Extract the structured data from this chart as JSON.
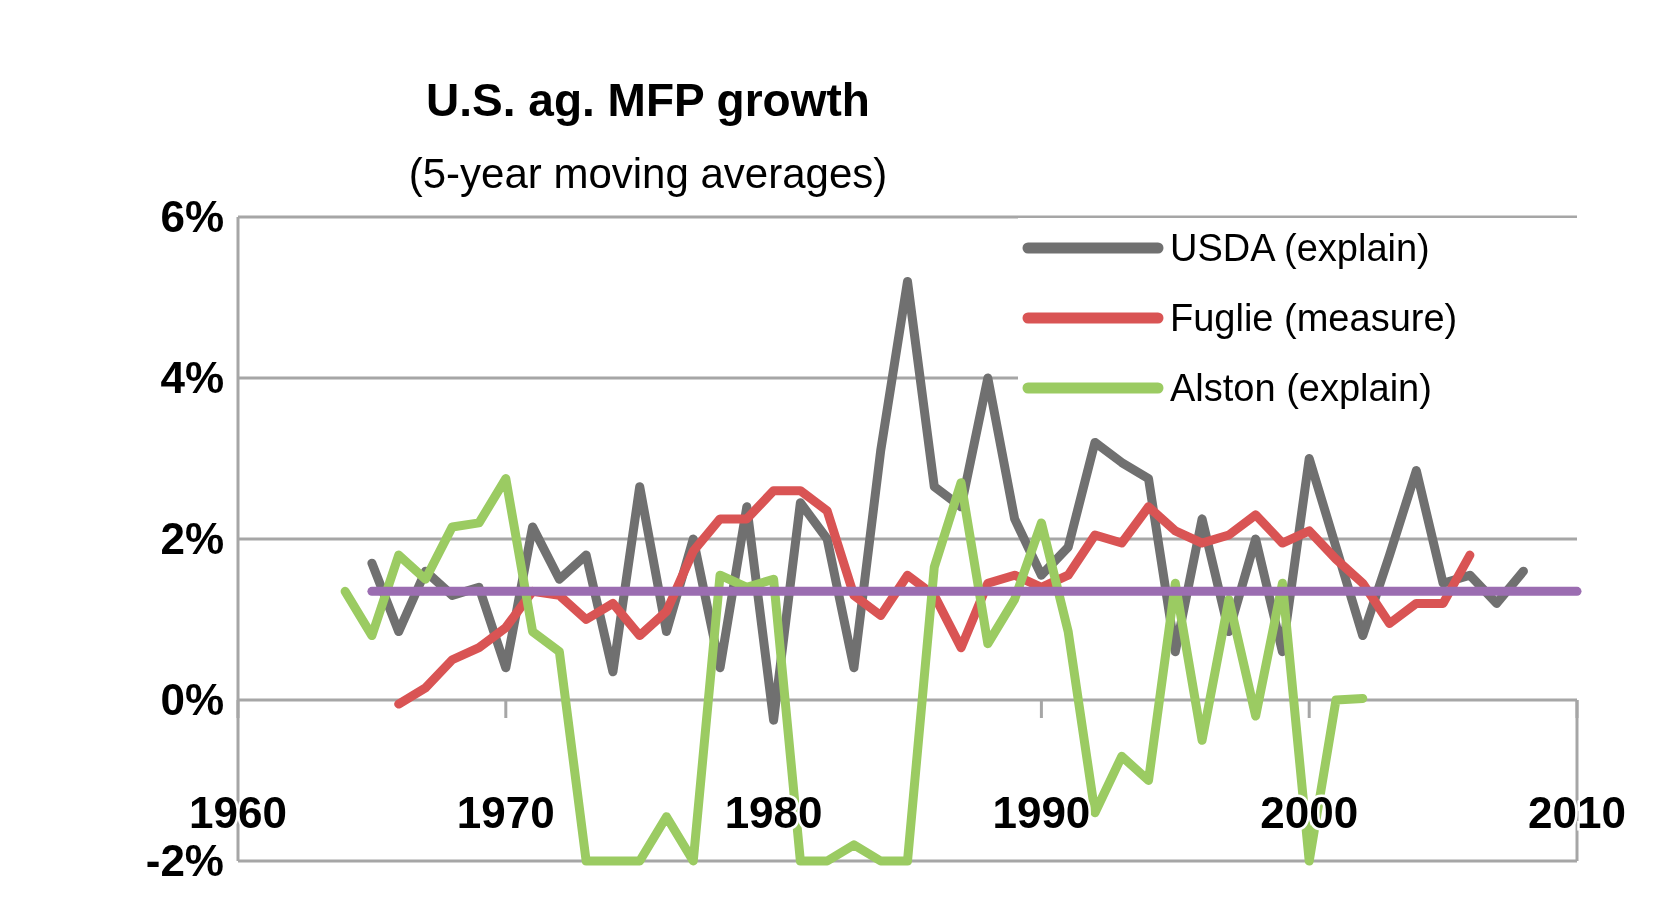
{
  "chart_data": {
    "type": "line",
    "title": "U.S. ag. MFP growth",
    "subtitle": "(5-year moving averages)",
    "xlim": [
      1960,
      2010
    ],
    "xticks": [
      1960,
      1970,
      1980,
      1990,
      2000,
      2010
    ],
    "ylim": [
      -2,
      6
    ],
    "yticks": [
      {
        "value": -2,
        "label": "-2%"
      },
      {
        "value": 0,
        "label": "0%"
      },
      {
        "value": 2,
        "label": "2%"
      },
      {
        "value": 4,
        "label": "4%"
      },
      {
        "value": 6,
        "label": "6%"
      }
    ],
    "grid": "y",
    "legend": "top right",
    "line_style": "solid",
    "marker": "none",
    "series": [
      {
        "name": "USDA (explain)",
        "color": "#707070",
        "x": [
          1965,
          1966,
          1967,
          1968,
          1969,
          1970,
          1971,
          1972,
          1973,
          1974,
          1975,
          1976,
          1977,
          1978,
          1979,
          1980,
          1981,
          1982,
          1983,
          1984,
          1985,
          1986,
          1987,
          1988,
          1989,
          1990,
          1991,
          1992,
          1993,
          1994,
          1995,
          1996,
          1997,
          1998,
          1999,
          2000,
          2001,
          2002,
          2003,
          2004,
          2005,
          2006,
          2007,
          2008
        ],
        "values": [
          1.7,
          0.85,
          1.6,
          1.3,
          1.4,
          0.4,
          2.15,
          1.5,
          1.8,
          0.35,
          2.65,
          0.85,
          2.0,
          0.4,
          2.4,
          -0.25,
          2.45,
          2.0,
          0.4,
          3.1,
          5.2,
          2.65,
          2.4,
          4.0,
          2.25,
          1.55,
          1.9,
          3.2,
          2.95,
          2.75,
          0.6,
          2.25,
          0.85,
          2.0,
          0.6,
          3.0,
          1.9,
          0.8,
          1.8,
          2.85,
          1.45,
          1.55,
          1.2,
          1.6
        ]
      },
      {
        "name": "Fuglie (measure)",
        "color": "#d95454",
        "x": [
          1966,
          1967,
          1968,
          1969,
          1970,
          1971,
          1972,
          1973,
          1974,
          1975,
          1976,
          1977,
          1978,
          1979,
          1980,
          1981,
          1982,
          1983,
          1984,
          1985,
          1986,
          1987,
          1988,
          1989,
          1990,
          1991,
          1992,
          1993,
          1994,
          1995,
          1996,
          1997,
          1998,
          1999,
          2000,
          2001,
          2002,
          2003,
          2004,
          2005,
          2006
        ],
        "values": [
          -0.05,
          0.15,
          0.5,
          0.65,
          0.9,
          1.35,
          1.3,
          1.0,
          1.2,
          0.8,
          1.1,
          1.85,
          2.25,
          2.25,
          2.6,
          2.6,
          2.35,
          1.3,
          1.05,
          1.55,
          1.3,
          0.65,
          1.45,
          1.55,
          1.4,
          1.55,
          2.05,
          1.95,
          2.4,
          2.1,
          1.95,
          2.05,
          2.3,
          1.95,
          2.1,
          1.75,
          1.45,
          0.95,
          1.2,
          1.2,
          1.8
        ]
      },
      {
        "name": "Alston (explain)",
        "color": "#9bcb62",
        "x": [
          1964,
          1965,
          1966,
          1967,
          1968,
          1969,
          1970,
          1971,
          1972,
          1973,
          1974,
          1975,
          1976,
          1977,
          1978,
          1979,
          1980,
          1981,
          1982,
          1983,
          1984,
          1985,
          1986,
          1987,
          1988,
          1989,
          1990,
          1991,
          1992,
          1993,
          1994,
          1995,
          1996,
          1997,
          1998,
          1999,
          2000,
          2001,
          2002
        ],
        "values": [
          1.35,
          0.8,
          1.8,
          1.5,
          2.15,
          2.2,
          2.75,
          0.85,
          0.6,
          -2,
          -2,
          -2,
          -1.45,
          -2,
          1.55,
          1.4,
          1.5,
          -2,
          -2,
          -1.8,
          -2,
          -2,
          1.65,
          2.7,
          0.7,
          1.25,
          2.2,
          0.85,
          -1.4,
          -0.7,
          -1.0,
          1.45,
          -0.5,
          1.25,
          -0.2,
          1.45,
          -2,
          0.0,
          0.02
        ]
      },
      {
        "color": "#9b6db1",
        "x": [
          1965,
          2010
        ],
        "values": [
          1.35,
          1.35
        ]
      }
    ]
  }
}
